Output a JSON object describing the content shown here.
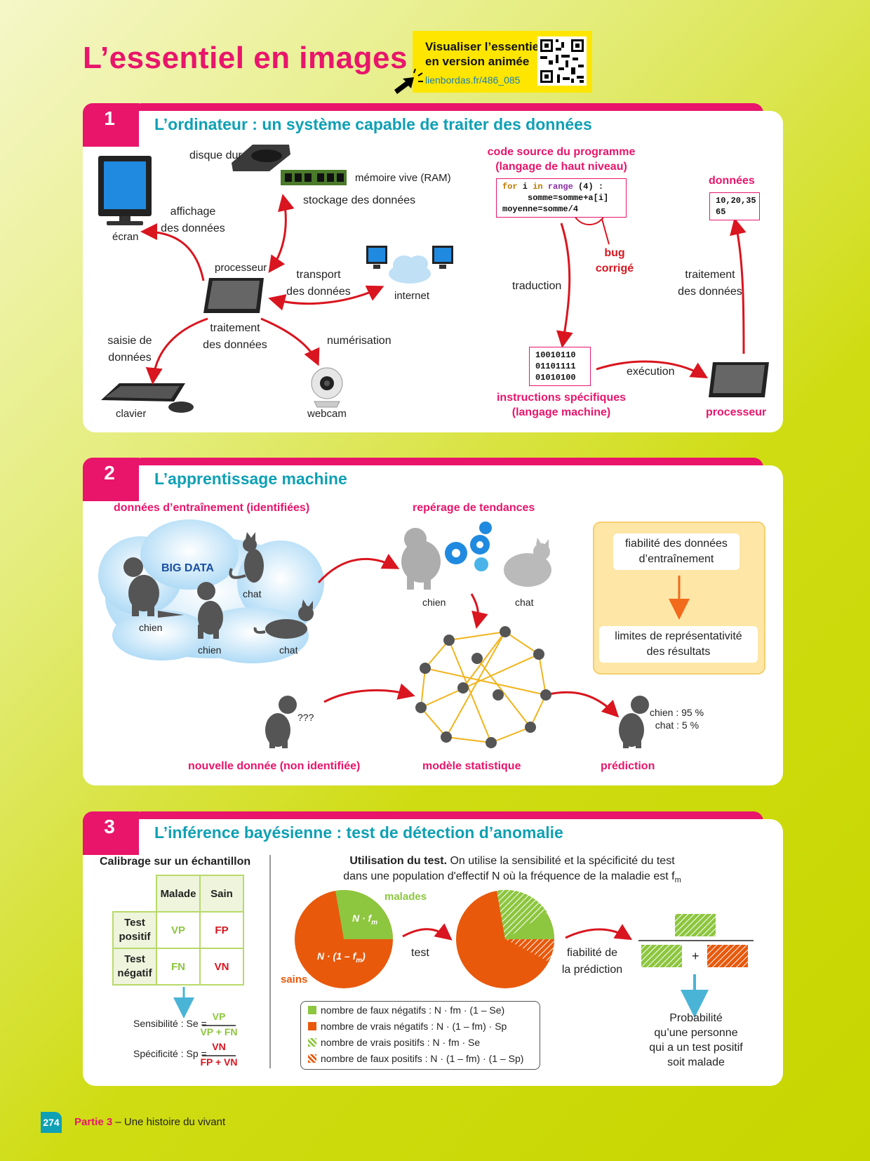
{
  "page_title": "L’essentiel en images",
  "badge": {
    "line1": "Visualiser l’essentiel",
    "line2": "en version animée",
    "url": "lienbordas.fr/486_085"
  },
  "section1": {
    "number": "1",
    "title": "L’ordinateur : un système capable de traiter des données",
    "labels": {
      "disque_dur": "disque dur",
      "memoire_vive": "mémoire vive (RAM)",
      "stockage": "stockage des données",
      "affichage_1": "affichage",
      "affichage_2": "des données",
      "ecran": "écran",
      "processeur": "processeur",
      "transport_1": "transport",
      "transport_2": "des données",
      "internet": "internet",
      "traitement_1": "traitement",
      "traitement_2": "des données",
      "saisie_1": "saisie de",
      "saisie_2": "données",
      "numerisation": "numérisation",
      "clavier": "clavier",
      "webcam": "webcam",
      "code_source_1": "code source du programme",
      "code_source_2": "(langage de haut niveau)",
      "code_line1_kw": "for",
      "code_line1_a": " i ",
      "code_line1_kw2": "in",
      "code_line1_kw3": "range",
      "code_line1_b": " (4) :",
      "code_line2": "     somme=somme+a[i]",
      "code_line3": "moyenne=somme/4",
      "bug_1": "bug",
      "bug_2": "corrigé",
      "traduction": "traduction",
      "binary": [
        "10010110",
        "01101111",
        "01010100"
      ],
      "instructions_1": "instructions spécifiques",
      "instructions_2": "(langage machine)",
      "execution": "exécution",
      "processeur_pink": "processeur",
      "donnees": "données",
      "data_line1": "10,20,35",
      "data_line2": "65",
      "traitement_r1": "traitement",
      "traitement_r2": "des données"
    }
  },
  "section2": {
    "number": "2",
    "title": "L’apprentissage machine",
    "labels": {
      "donnees_entrainement": "données d’entraînement (identifiées)",
      "big_data": "BIG DATA",
      "chien": "chien",
      "chat": "chat",
      "reperage": "repérage de tendances",
      "fiabilite_1": "fiabilité des données",
      "fiabilite_2": "d’entraînement",
      "limites_1": "limites de représentativité",
      "limites_2": "des résultats",
      "question": "???",
      "nouvelle": "nouvelle donnée (non identifiée)",
      "modele": "modèle statistique",
      "prediction": "prédiction",
      "pred_chien": "chien : 95 %",
      "pred_chat": "chat : 5 %"
    }
  },
  "section3": {
    "number": "3",
    "title": "L’inférence bayésienne : test de détection d’anomalie",
    "calibrage": "Calibrage sur un échantillon",
    "table": {
      "col_headers": [
        "Malade",
        "Sain"
      ],
      "rows": [
        {
          "h1": "Test",
          "h2": "positif",
          "cells": [
            "VP",
            "FP"
          ]
        },
        {
          "h1": "Test",
          "h2": "négatif",
          "cells": [
            "FN",
            "VN"
          ]
        }
      ]
    },
    "sensibilite_label": "Sensibilité : Se =",
    "sensibilite_num": "VP",
    "sensibilite_den": "VP + FN",
    "specificite_label": "Spécificité : Sp =",
    "specificite_num": "VN",
    "specificite_den": "FP + VN",
    "utilisation_bold": "Utilisation du test.",
    "utilisation_rest": " On utilise la sensibilité et la spécificité du test",
    "utilisation_line2": "dans une population d'effectif N où la fréquence de la maladie est f",
    "utilisation_sub": "m",
    "malades": "malades",
    "sains": "sains",
    "n_fm": "N · f",
    "n_fm_sub": "m",
    "n_1fm": "N · (1 – f",
    "n_1fm_sub": "m",
    "n_1fm_end": ")",
    "test": "test",
    "fiabilite_1": "fiabilité de",
    "fiabilite_2": "la prédiction",
    "legend": [
      "nombre de faux négatifs : N · fm · (1 – Se)",
      "nombre de vrais négatifs : N · (1 – fm) · Sp",
      "nombre de vrais positifs : N · fm · Se",
      "nombre de faux positifs : N · (1 – fm) · (1 – Sp)"
    ],
    "plus": "+",
    "probabilite": [
      "Probabilité",
      "qu’une personne",
      "qui a un test positif",
      "soit malade"
    ]
  },
  "footer": {
    "page": "274",
    "part": "Partie 3",
    "rest": " – Une histoire du vivant"
  },
  "colors": {
    "pink": "#e8156b",
    "teal": "#0fa0b5",
    "green": "#8dc63f",
    "orange": "#e8590c",
    "red": "#d9151f"
  }
}
